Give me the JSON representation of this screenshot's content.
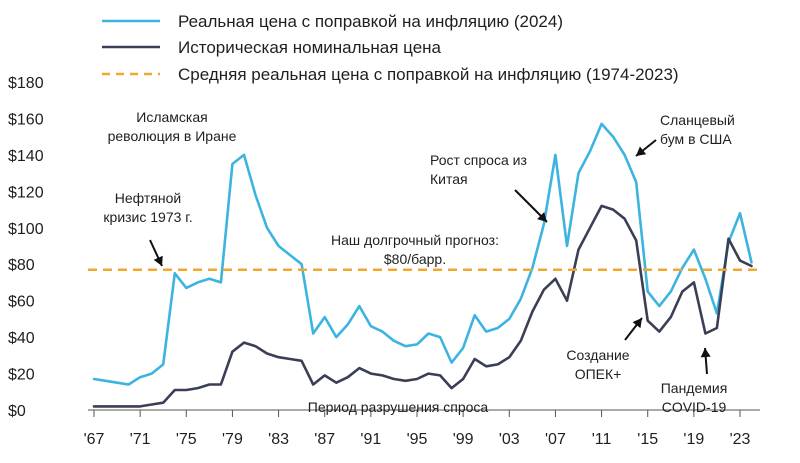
{
  "chart_data": {
    "type": "line",
    "xlim": [
      1967,
      2024
    ],
    "ylim": [
      0,
      180
    ],
    "grid": false,
    "legend_placement": "top",
    "y_ticks": [
      {
        "value": 0,
        "label": "$0"
      },
      {
        "value": 20,
        "label": "$20"
      },
      {
        "value": 40,
        "label": "$40"
      },
      {
        "value": 60,
        "label": "$60"
      },
      {
        "value": 80,
        "label": "$80"
      },
      {
        "value": 100,
        "label": "$100"
      },
      {
        "value": 120,
        "label": "$120"
      },
      {
        "value": 140,
        "label": "$140"
      },
      {
        "value": 160,
        "label": "$160"
      },
      {
        "value": 180,
        "label": "$180"
      }
    ],
    "x_ticks": [
      {
        "value": 1967,
        "label": "'67"
      },
      {
        "value": 1971,
        "label": "'71"
      },
      {
        "value": 1975,
        "label": "'75"
      },
      {
        "value": 1979,
        "label": "'79"
      },
      {
        "value": 1983,
        "label": "'83"
      },
      {
        "value": 1987,
        "label": "'87"
      },
      {
        "value": 1991,
        "label": "'91"
      },
      {
        "value": 1995,
        "label": "'95"
      },
      {
        "value": 1999,
        "label": "'99"
      },
      {
        "value": 2003,
        "label": "'03"
      },
      {
        "value": 2007,
        "label": "'07"
      },
      {
        "value": 2011,
        "label": "'11"
      },
      {
        "value": 2015,
        "label": "'15"
      },
      {
        "value": 2019,
        "label": "'19"
      },
      {
        "value": 2023,
        "label": "'23"
      }
    ],
    "series": [
      {
        "name": "Реальная цена с поправкой на инфляцию (2024)",
        "color": "#3db4e0",
        "x": [
          1967,
          1968,
          1969,
          1970,
          1971,
          1972,
          1973,
          1974,
          1975,
          1976,
          1977,
          1978,
          1979,
          1980,
          1981,
          1982,
          1983,
          1984,
          1985,
          1986,
          1987,
          1988,
          1989,
          1990,
          1991,
          1992,
          1993,
          1994,
          1995,
          1996,
          1997,
          1998,
          1999,
          2000,
          2001,
          2002,
          2003,
          2004,
          2005,
          2006,
          2007,
          2008,
          2009,
          2010,
          2011,
          2012,
          2013,
          2014,
          2015,
          2016,
          2017,
          2018,
          2019,
          2020,
          2021,
          2022,
          2023,
          2024
        ],
        "y": [
          17,
          16,
          15,
          14,
          18,
          20,
          25,
          75,
          67,
          70,
          72,
          70,
          135,
          140,
          118,
          100,
          90,
          85,
          80,
          42,
          51,
          40,
          47,
          57,
          46,
          43,
          38,
          35,
          36,
          42,
          40,
          26,
          34,
          52,
          43,
          45,
          50,
          61,
          78,
          102,
          140,
          90,
          130,
          142,
          157,
          150,
          140,
          125,
          65,
          57,
          65,
          78,
          88,
          72,
          53,
          92,
          108,
          81
        ]
      },
      {
        "name": "Историческая номинальная цена",
        "color": "#3a3f55",
        "x": [
          1967,
          1968,
          1969,
          1970,
          1971,
          1972,
          1973,
          1974,
          1975,
          1976,
          1977,
          1978,
          1979,
          1980,
          1981,
          1982,
          1983,
          1984,
          1985,
          1986,
          1987,
          1988,
          1989,
          1990,
          1991,
          1992,
          1993,
          1994,
          1995,
          1996,
          1997,
          1998,
          1999,
          2000,
          2001,
          2002,
          2003,
          2004,
          2005,
          2006,
          2007,
          2008,
          2009,
          2010,
          2011,
          2012,
          2013,
          2014,
          2015,
          2016,
          2017,
          2018,
          2019,
          2020,
          2021,
          2022,
          2023,
          2024
        ],
        "y": [
          2,
          2,
          2,
          2,
          2,
          3,
          4,
          11,
          11,
          12,
          14,
          14,
          32,
          37,
          35,
          31,
          29,
          28,
          27,
          14,
          19,
          15,
          18,
          23,
          20,
          19,
          17,
          16,
          17,
          20,
          19,
          12,
          17,
          28,
          24,
          25,
          29,
          38,
          54,
          66,
          72,
          60,
          88,
          100,
          112,
          110,
          105,
          93,
          49,
          43,
          51,
          65,
          70,
          42,
          45,
          94,
          82,
          79
        ]
      }
    ],
    "reference_line": {
      "name": "Средняя реальная цена с поправкой на инфляцию (1974-2023)",
      "value": 77,
      "color": "#f0a830"
    },
    "annotations": [
      {
        "id": "oil-crisis",
        "lines": [
          "Нефтяной",
          "кризис 1973 г."
        ],
        "anchor": "middle"
      },
      {
        "id": "iran",
        "lines": [
          "Исламская",
          "революция в Иране"
        ],
        "anchor": "middle"
      },
      {
        "id": "forecast",
        "lines": [
          "Наш долгрочный прогноз:",
          "$80/барр."
        ],
        "anchor": "middle"
      },
      {
        "id": "china",
        "lines": [
          "Рост спроса из",
          "Китая"
        ],
        "anchor": "start"
      },
      {
        "id": "shale",
        "lines": [
          "Сланцевый",
          "бум в США"
        ],
        "anchor": "start"
      },
      {
        "id": "demand",
        "lines": [
          "Период разрушения спроса"
        ],
        "anchor": "middle"
      },
      {
        "id": "opec",
        "lines": [
          "Создание",
          "ОПЕК+"
        ],
        "anchor": "middle"
      },
      {
        "id": "covid",
        "lines": [
          "Пандемия",
          "COVID-19"
        ],
        "anchor": "middle"
      }
    ]
  }
}
